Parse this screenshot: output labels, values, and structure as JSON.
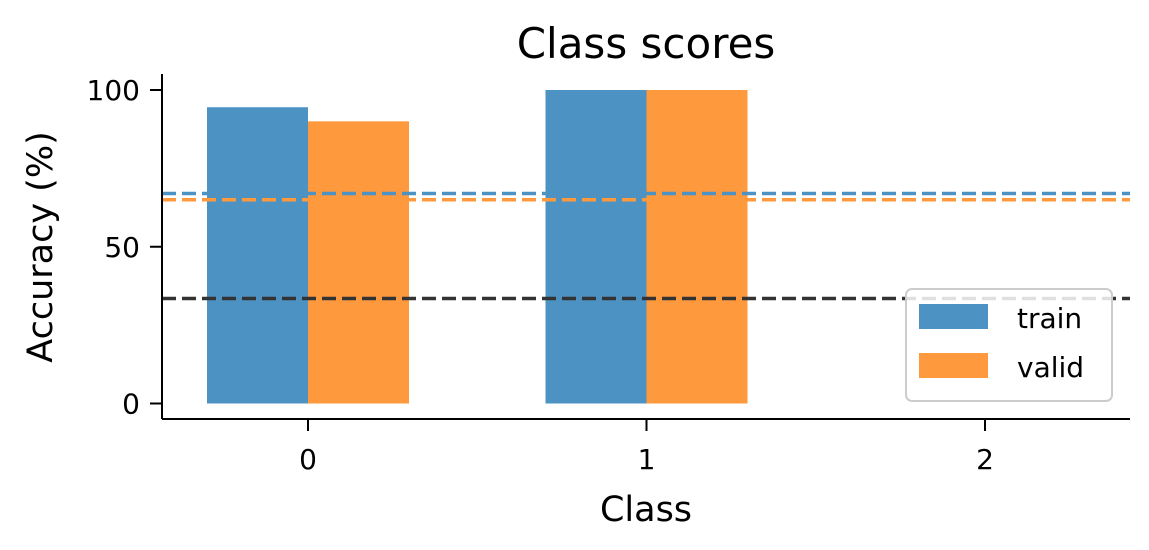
{
  "chart_data": {
    "type": "bar",
    "title": "Class scores",
    "xlabel": "Class",
    "ylabel": "Accuracy (%)",
    "categories": [
      "0",
      "1",
      "2"
    ],
    "series": [
      {
        "name": "train",
        "color": "#4c92c3",
        "values": [
          94.5,
          100,
          0
        ]
      },
      {
        "name": "valid",
        "color": "#ff993e",
        "values": [
          90,
          100,
          0
        ]
      }
    ],
    "reference_lines": [
      {
        "value": 67,
        "color": "#4c92c3",
        "style": "dashed"
      },
      {
        "value": 65,
        "color": "#ff993e",
        "style": "dashed"
      },
      {
        "value": 33.5,
        "color": "#333333",
        "style": "dashed"
      }
    ],
    "ylim": [
      -5,
      105
    ],
    "yticks": [
      0,
      50,
      100
    ],
    "grid": false,
    "legend_position": "lower-right"
  }
}
